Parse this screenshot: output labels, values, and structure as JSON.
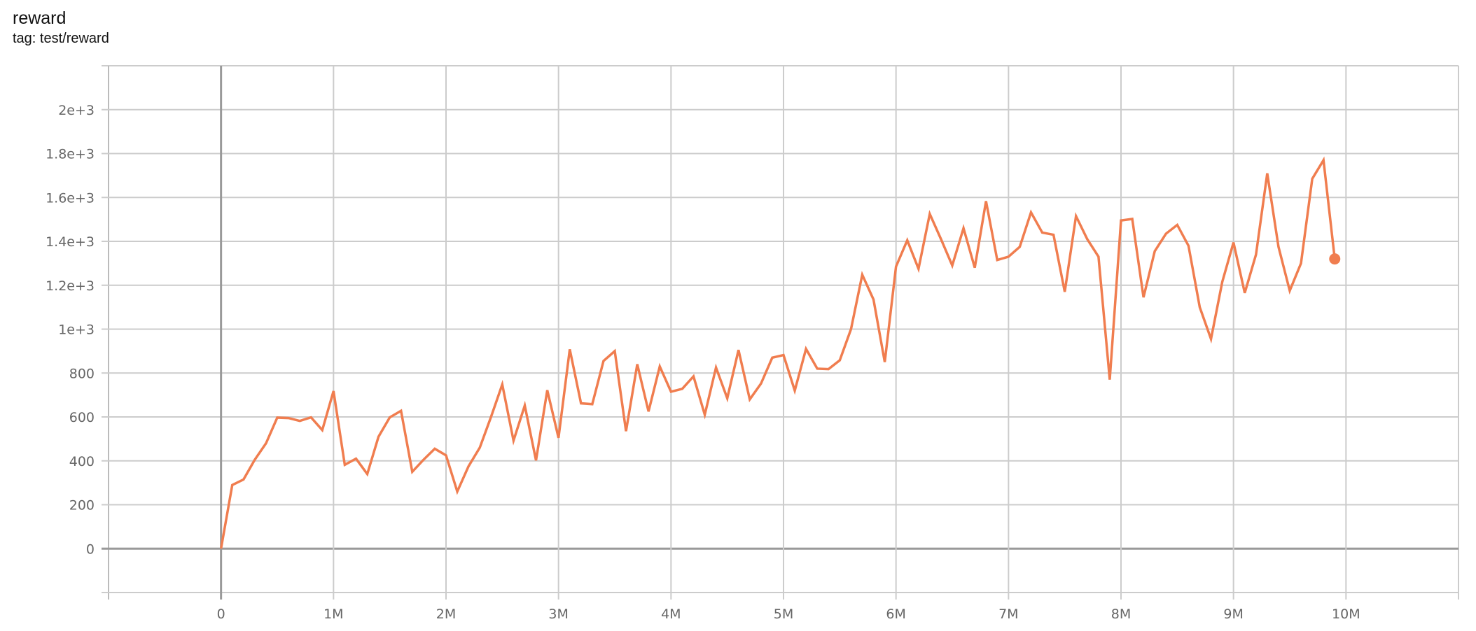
{
  "header": {
    "title": "reward",
    "tag": "tag: test/reward"
  },
  "chart_data": {
    "type": "line",
    "title": "reward",
    "subtitle": "tag: test/reward",
    "xlabel": "",
    "ylabel": "",
    "xlim": [
      -1000000,
      11000000
    ],
    "ylim": [
      -200,
      2200
    ],
    "grid": true,
    "line_color": "#f07d4f",
    "x_ticks": [
      {
        "v": 0,
        "label": "0"
      },
      {
        "v": 1000000,
        "label": "1M"
      },
      {
        "v": 2000000,
        "label": "2M"
      },
      {
        "v": 3000000,
        "label": "3M"
      },
      {
        "v": 4000000,
        "label": "4M"
      },
      {
        "v": 5000000,
        "label": "5M"
      },
      {
        "v": 6000000,
        "label": "6M"
      },
      {
        "v": 7000000,
        "label": "7M"
      },
      {
        "v": 8000000,
        "label": "8M"
      },
      {
        "v": 9000000,
        "label": "9M"
      },
      {
        "v": 10000000,
        "label": "10M"
      }
    ],
    "y_ticks": [
      {
        "v": 0,
        "label": "0"
      },
      {
        "v": 200,
        "label": "200"
      },
      {
        "v": 400,
        "label": "400"
      },
      {
        "v": 600,
        "label": "600"
      },
      {
        "v": 800,
        "label": "800"
      },
      {
        "v": 1000,
        "label": "1e+3"
      },
      {
        "v": 1200,
        "label": "1.2e+3"
      },
      {
        "v": 1400,
        "label": "1.4e+3"
      },
      {
        "v": 1600,
        "label": "1.6e+3"
      },
      {
        "v": 1800,
        "label": "1.8e+3"
      },
      {
        "v": 2000,
        "label": "2e+3"
      }
    ],
    "series": [
      {
        "x_step": 100000,
        "values": [
          0,
          290,
          315,
          405,
          480,
          597,
          595,
          582,
          598,
          540,
          718,
          382,
          410,
          340,
          510,
          598,
          628,
          350,
          405,
          455,
          425,
          260,
          375,
          460,
          600,
          748,
          492,
          652,
          402,
          722,
          505,
          908,
          662,
          658,
          855,
          900,
          535,
          840,
          625,
          830,
          715,
          728,
          785,
          610,
          825,
          685,
          905,
          680,
          752,
          870,
          882,
          720,
          910,
          820,
          818,
          858,
          1000,
          1248,
          1135,
          850,
          1285,
          1405,
          1275,
          1525,
          1410,
          1290,
          1460,
          1280,
          1583,
          1315,
          1330,
          1375,
          1532,
          1440,
          1430,
          1170,
          1515,
          1410,
          1330,
          770,
          1495,
          1502,
          1145,
          1355,
          1435,
          1475,
          1380,
          1100,
          955,
          1215,
          1395,
          1165,
          1340,
          1710,
          1375,
          1175,
          1300,
          1685,
          1770,
          1320
        ]
      }
    ]
  }
}
